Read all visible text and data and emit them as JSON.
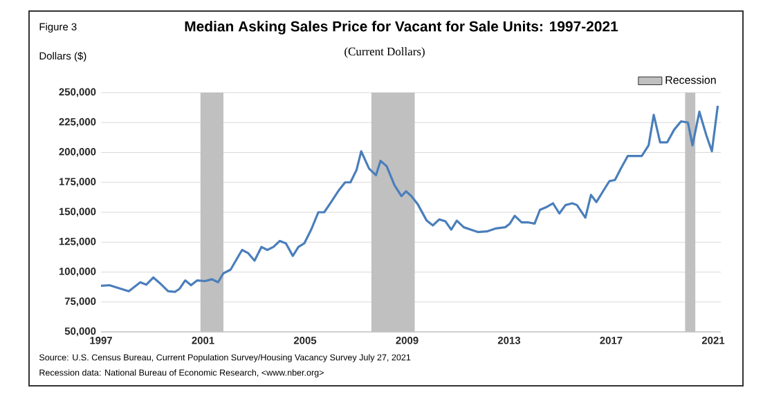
{
  "chart_data": {
    "type": "line",
    "title": "Median Asking Sales Price for Vacant for Sale Units: 1997-2021",
    "subtitle": "(Current Dollars)",
    "ylabel": "Dollars ($)",
    "annotations": [
      "Figure 3",
      "Source: U.S. Census Bureau, Current Population Survey/Housing Vacancy Survey July 27, 2021",
      "Recession data: National Bureau of Economic Research, <www.nber.org>"
    ],
    "x": [
      1997.0,
      1997.33,
      1998.09,
      1998.54,
      1998.78,
      1999.05,
      1999.32,
      1999.63,
      1999.9,
      2000.08,
      2000.3,
      2000.53,
      2000.77,
      2001.08,
      2001.35,
      2001.59,
      2001.8,
      2002.08,
      2002.53,
      2002.76,
      2003.02,
      2003.29,
      2003.52,
      2003.76,
      2004.01,
      2004.25,
      2004.52,
      2004.74,
      2004.97,
      2005.24,
      2005.52,
      2005.75,
      2006.02,
      2006.33,
      2006.57,
      2006.78,
      2007.02,
      2007.2,
      2007.51,
      2007.78,
      2007.96,
      2008.2,
      2008.51,
      2008.78,
      2008.96,
      2009.17,
      2009.41,
      2009.77,
      2010.01,
      2010.26,
      2010.5,
      2010.73,
      2010.95,
      2011.22,
      2011.49,
      2011.77,
      2012.13,
      2012.49,
      2012.85,
      2013.03,
      2013.22,
      2013.49,
      2013.76,
      2014.0,
      2014.21,
      2014.48,
      2014.72,
      2014.97,
      2015.21,
      2015.48,
      2015.66,
      2015.99,
      2016.21,
      2016.42,
      2016.71,
      2016.93,
      2017.15,
      2017.38,
      2017.65,
      2017.92,
      2018.2,
      2018.47,
      2018.67,
      2018.92,
      2019.2,
      2019.47,
      2019.74,
      2020.01,
      2020.19,
      2020.46,
      2020.73,
      2020.95,
      2021.18
    ],
    "series": [
      {
        "color": "#4a7ebb",
        "values": [
          88500,
          89000,
          84000,
          91500,
          89500,
          95500,
          90500,
          84000,
          83500,
          86000,
          93000,
          89000,
          93000,
          92500,
          94000,
          91500,
          99000,
          102000,
          118500,
          116000,
          109500,
          121000,
          118500,
          121000,
          126000,
          124000,
          113500,
          121000,
          124000,
          135500,
          150000,
          150000,
          158500,
          168500,
          175000,
          175000,
          185500,
          201000,
          186500,
          181000,
          193000,
          188500,
          172500,
          163500,
          167500,
          163500,
          157000,
          143000,
          139000,
          144000,
          142500,
          135500,
          143000,
          137500,
          135500,
          133500,
          134000,
          136500,
          137500,
          140500,
          147000,
          141500,
          141500,
          140500,
          152000,
          154500,
          157500,
          149000,
          156000,
          157500,
          156000,
          145500,
          164500,
          158500,
          168500,
          176000,
          177000,
          186500,
          197000,
          197000,
          197000,
          206000,
          231500,
          208500,
          208500,
          219000,
          226000,
          225000,
          206000,
          234000,
          214500,
          201000,
          239000
        ]
      }
    ],
    "xlim": [
      1997,
      2021.3
    ],
    "ylim": [
      50000,
      250000
    ],
    "xticks": [
      1997,
      2001,
      2005,
      2009,
      2013,
      2017,
      2021
    ],
    "yticks": [
      {
        "value": 50000,
        "label": "50,000"
      },
      {
        "value": 75000,
        "label": "75,000"
      },
      {
        "value": 100000,
        "label": "100,000"
      },
      {
        "value": 125000,
        "label": "125,000"
      },
      {
        "value": 150000,
        "label": "150,000"
      },
      {
        "value": 175000,
        "label": "175,000"
      },
      {
        "value": 200000,
        "label": "200,000"
      },
      {
        "value": 225000,
        "label": "225,000"
      },
      {
        "value": 250000,
        "label": "250,000"
      }
    ],
    "bands": [
      {
        "axis": "x",
        "from": 2000.9,
        "to": 2001.8,
        "label": "Recession",
        "color": "#c0c0c0"
      },
      {
        "axis": "x",
        "from": 2007.6,
        "to": 2009.3,
        "color": "#c0c0c0"
      },
      {
        "axis": "x",
        "from": 2019.9,
        "to": 2020.3,
        "color": "#c0c0c0"
      }
    ],
    "grid": "y",
    "legend": "top right",
    "line_style": "solid"
  }
}
